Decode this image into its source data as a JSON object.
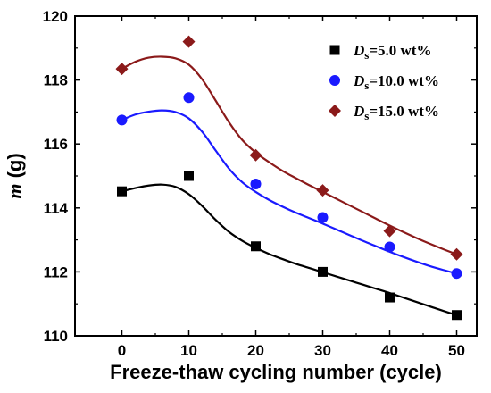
{
  "chart_data": {
    "type": "scatter",
    "xlabel": "Freeze-thaw cycling number (cycle)",
    "ylabel": {
      "symbol": "m",
      "unit": " (g)"
    },
    "xlim": [
      -7,
      53
    ],
    "ylim": [
      110,
      120
    ],
    "xticks": [
      0,
      10,
      20,
      30,
      40,
      50
    ],
    "yticks": [
      110,
      112,
      114,
      116,
      118,
      120
    ],
    "grid": false,
    "legend_position": "top-right",
    "series": [
      {
        "name": {
          "symbol": "D",
          "sub": "s",
          "rest": "=5.0 wt%"
        },
        "marker": "square",
        "color": "#000000",
        "x": [
          0,
          10,
          20,
          30,
          40,
          50
        ],
        "y": [
          114.52,
          115.0,
          112.8,
          112.0,
          111.2,
          110.65
        ],
        "fit": [
          [
            0,
            114.52
          ],
          [
            2,
            114.62
          ],
          [
            4,
            114.7
          ],
          [
            6,
            114.73
          ],
          [
            8,
            114.66
          ],
          [
            10,
            114.43
          ],
          [
            12,
            114.06
          ],
          [
            14,
            113.63
          ],
          [
            16,
            113.25
          ],
          [
            18,
            112.97
          ],
          [
            20,
            112.75
          ],
          [
            22,
            112.56
          ],
          [
            24,
            112.4
          ],
          [
            26,
            112.25
          ],
          [
            28,
            112.12
          ],
          [
            30,
            111.99
          ],
          [
            32,
            111.86
          ],
          [
            34,
            111.73
          ],
          [
            36,
            111.6
          ],
          [
            38,
            111.47
          ],
          [
            40,
            111.34
          ],
          [
            42,
            111.2
          ],
          [
            44,
            111.06
          ],
          [
            46,
            110.92
          ],
          [
            48,
            110.78
          ],
          [
            50,
            110.65
          ]
        ]
      },
      {
        "name": {
          "symbol": "D",
          "sub": "s",
          "rest": "=10.0 wt%"
        },
        "marker": "circle",
        "color": "#1a1aff",
        "x": [
          0,
          10,
          20,
          30,
          40,
          50
        ],
        "y": [
          116.75,
          117.45,
          114.75,
          113.7,
          112.78,
          111.95
        ],
        "fit": [
          [
            0,
            116.75
          ],
          [
            2,
            116.92
          ],
          [
            4,
            117.01
          ],
          [
            6,
            117.05
          ],
          [
            8,
            117.0
          ],
          [
            10,
            116.8
          ],
          [
            12,
            116.38
          ],
          [
            14,
            115.8
          ],
          [
            16,
            115.23
          ],
          [
            18,
            114.8
          ],
          [
            20,
            114.5
          ],
          [
            22,
            114.25
          ],
          [
            24,
            114.04
          ],
          [
            26,
            113.85
          ],
          [
            28,
            113.68
          ],
          [
            30,
            113.51
          ],
          [
            32,
            113.33
          ],
          [
            34,
            113.15
          ],
          [
            36,
            112.97
          ],
          [
            38,
            112.8
          ],
          [
            40,
            112.63
          ],
          [
            42,
            112.47
          ],
          [
            44,
            112.32
          ],
          [
            46,
            112.18
          ],
          [
            48,
            112.06
          ],
          [
            50,
            111.95
          ]
        ]
      },
      {
        "name": {
          "symbol": "D",
          "sub": "s",
          "rest": "=15.0 wt%"
        },
        "marker": "diamond",
        "color": "#8b1a1a",
        "x": [
          0,
          10,
          20,
          30,
          40,
          50
        ],
        "y": [
          118.35,
          119.2,
          115.65,
          114.55,
          113.28,
          112.55
        ],
        "fit": [
          [
            0,
            118.35
          ],
          [
            2,
            118.57
          ],
          [
            4,
            118.7
          ],
          [
            6,
            118.73
          ],
          [
            8,
            118.68
          ],
          [
            10,
            118.48
          ],
          [
            12,
            118.02
          ],
          [
            14,
            117.36
          ],
          [
            16,
            116.68
          ],
          [
            18,
            116.12
          ],
          [
            20,
            115.73
          ],
          [
            22,
            115.43
          ],
          [
            24,
            115.16
          ],
          [
            26,
            114.93
          ],
          [
            28,
            114.71
          ],
          [
            30,
            114.5
          ],
          [
            32,
            114.29
          ],
          [
            34,
            114.08
          ],
          [
            36,
            113.87
          ],
          [
            38,
            113.66
          ],
          [
            40,
            113.45
          ],
          [
            42,
            113.25
          ],
          [
            44,
            113.06
          ],
          [
            46,
            112.88
          ],
          [
            48,
            112.71
          ],
          [
            50,
            112.55
          ]
        ]
      }
    ]
  }
}
